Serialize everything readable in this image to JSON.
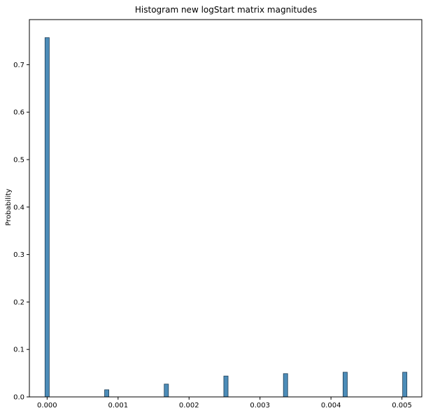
{
  "chart_data": {
    "type": "bar",
    "title": "Histogram new logStart matrix magnitudes",
    "xlabel": "",
    "ylabel": "Probability",
    "xlim": [
      -0.00025,
      0.00528
    ],
    "ylim": [
      0,
      0.795
    ],
    "x_ticks": [
      "0.000",
      "0.001",
      "0.002",
      "0.003",
      "0.004",
      "0.005"
    ],
    "y_ticks": [
      "0.0",
      "0.1",
      "0.2",
      "0.3",
      "0.4",
      "0.5",
      "0.6",
      "0.7"
    ],
    "bin_width": 6e-05,
    "bars": [
      {
        "x": 0.0,
        "value": 0.757
      },
      {
        "x": 0.00084,
        "value": 0.015
      },
      {
        "x": 0.00168,
        "value": 0.027
      },
      {
        "x": 0.00252,
        "value": 0.044
      },
      {
        "x": 0.00336,
        "value": 0.049
      },
      {
        "x": 0.0042,
        "value": 0.052
      },
      {
        "x": 0.00504,
        "value": 0.052
      }
    ],
    "grid": false,
    "bar_color": "#4c8cb8",
    "bar_edge_color": "#1f3f57"
  }
}
